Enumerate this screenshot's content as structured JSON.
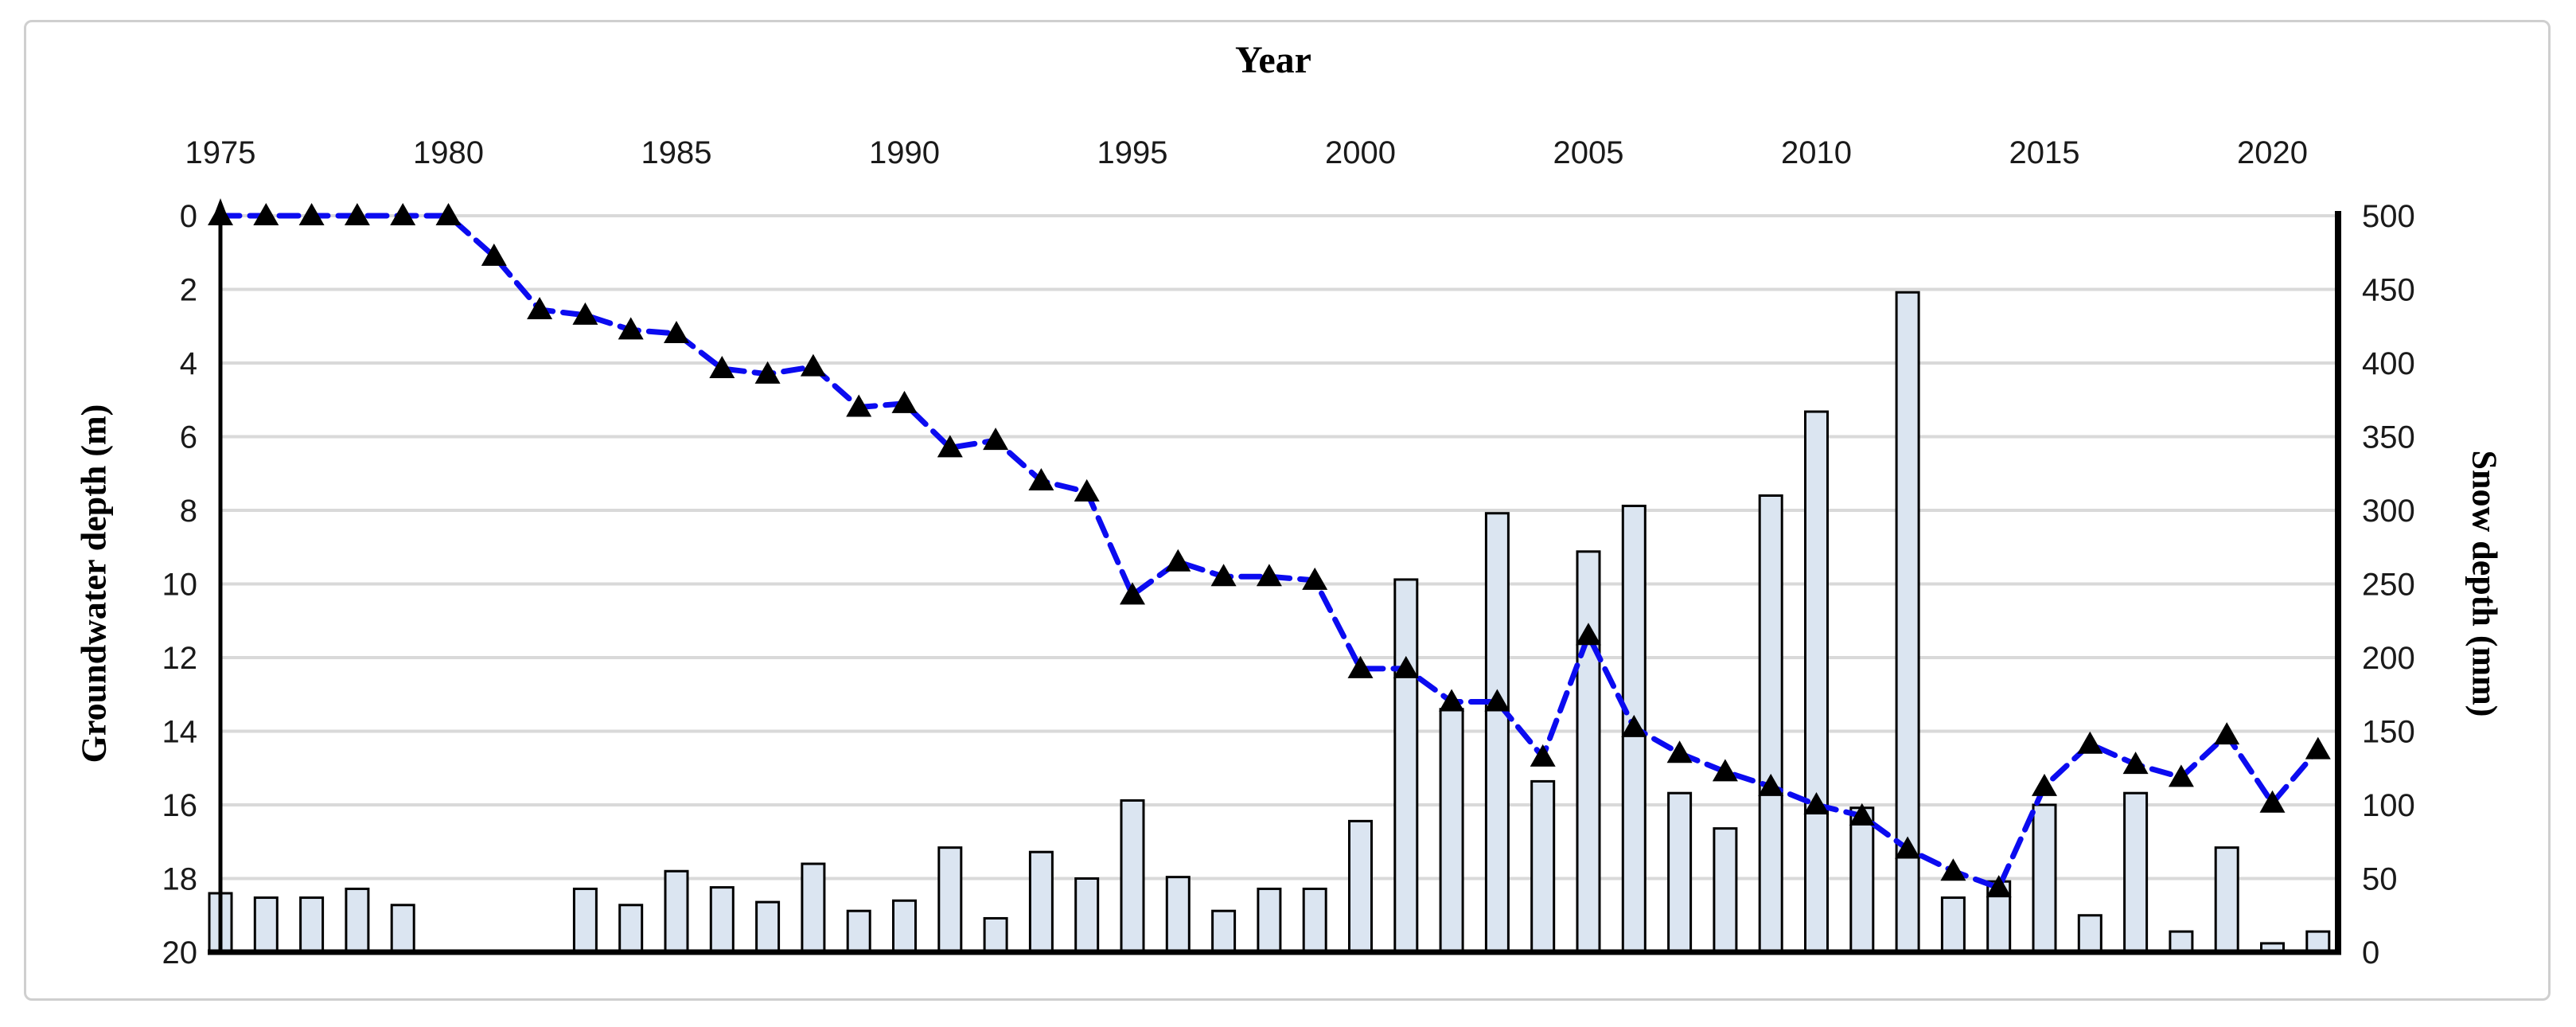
{
  "figure": {
    "background_color": "#ffffff",
    "border_color": "#cfcfcf"
  },
  "chart_data": {
    "type": "bar",
    "subtype": "combo-bar-line-dual-axis",
    "title": "",
    "xlabel": "Year",
    "x_axis": {
      "label": "Year",
      "position": "top",
      "tick_labels": [
        "1975",
        "1980",
        "1985",
        "1990",
        "1995",
        "2000",
        "2005",
        "2010",
        "2015",
        "2020"
      ],
      "tick_years": [
        1975,
        1980,
        1985,
        1990,
        1995,
        2000,
        2005,
        2010,
        2015,
        2020
      ]
    },
    "left_axis": {
      "label": "Groundwater depth (m)",
      "min": 0,
      "max": 20,
      "tick_step": 2,
      "inverted": true,
      "tick_labels": [
        "0",
        "2",
        "4",
        "6",
        "8",
        "10",
        "12",
        "14",
        "16",
        "18",
        "20"
      ]
    },
    "right_axis": {
      "label": "Snow depth (mm)",
      "min": 0,
      "max": 500,
      "tick_step": 50,
      "tick_labels": [
        "500",
        "450",
        "400",
        "350",
        "300",
        "250",
        "200",
        "150",
        "100",
        "50",
        "0"
      ]
    },
    "grid": {
      "show": true,
      "color": "#d9d9d9"
    },
    "legend": {
      "show": false
    },
    "categories": [
      1975,
      1976,
      1977,
      1978,
      1979,
      1980,
      1981,
      1982,
      1983,
      1984,
      1985,
      1986,
      1987,
      1988,
      1989,
      1990,
      1991,
      1992,
      1993,
      1994,
      1995,
      1996,
      1997,
      1998,
      1999,
      2000,
      2001,
      2002,
      2003,
      2004,
      2005,
      2006,
      2007,
      2008,
      2009,
      2010,
      2011,
      2012,
      2013,
      2014,
      2015,
      2016,
      2017,
      2018,
      2019,
      2020,
      2021
    ],
    "series": [
      {
        "name": "Snow depth (mm)",
        "type": "bar",
        "axis": "right",
        "fill_color": "#dbe5f1",
        "border_color": "#000000",
        "values": [
          40,
          37,
          37,
          43,
          32,
          0,
          0,
          0,
          43,
          32,
          55,
          44,
          34,
          60,
          28,
          35,
          71,
          23,
          68,
          50,
          103,
          51,
          28,
          43,
          43,
          89,
          253,
          165,
          298,
          116,
          272,
          303,
          108,
          84,
          310,
          367,
          98,
          448,
          37,
          48,
          100,
          25,
          108,
          14,
          71,
          6,
          14
        ]
      },
      {
        "name": "Groundwater depth (m)",
        "type": "line",
        "axis": "left",
        "line_color": "#0b0bf0",
        "line_style": "dashed",
        "marker": "black-triangle",
        "marker_color": "#000000",
        "values": [
          0,
          0,
          0,
          0,
          0,
          0,
          1.1,
          2.55,
          2.7,
          3.1,
          3.2,
          4.15,
          4.3,
          4.1,
          5.2,
          5.1,
          6.3,
          6.1,
          7.2,
          7.5,
          10.3,
          9.4,
          9.8,
          9.8,
          9.9,
          12.3,
          12.3,
          13.2,
          13.2,
          14.7,
          11.4,
          13.9,
          14.6,
          15.1,
          15.5,
          16.0,
          16.3,
          17.2,
          17.8,
          18.25,
          15.5,
          14.35,
          14.9,
          15.25,
          14.1,
          15.95,
          14.5
        ]
      }
    ]
  }
}
